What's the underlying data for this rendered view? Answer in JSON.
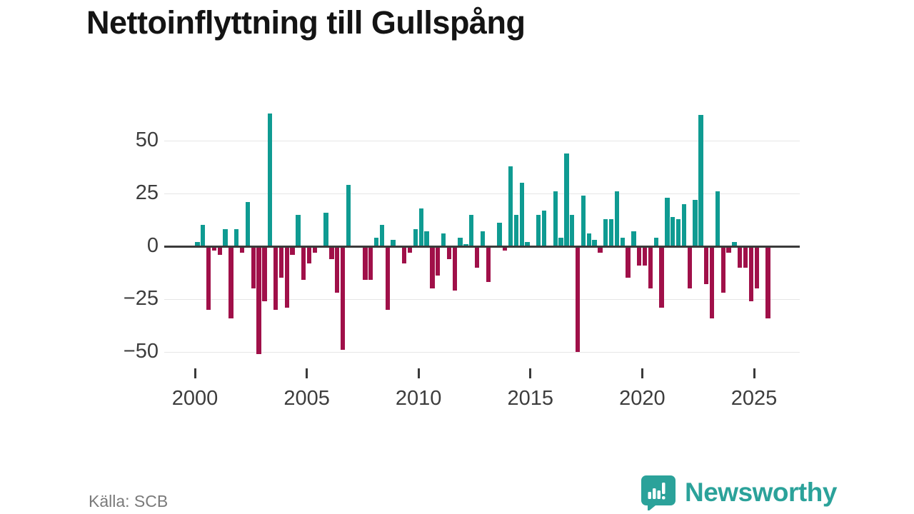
{
  "source": "Källa: SCB",
  "logo": {
    "text": "Newsworthy"
  },
  "colors": {
    "positive_bar": "#0f9b92",
    "negative_bar": "#a01049",
    "zero_line": "#3a3a3a",
    "grid": "#e6e6e6",
    "axis_text": "#3d3d3d",
    "source_text": "#7a7a7a",
    "logo_teal": "#2ba29a"
  },
  "chart_data": {
    "type": "bar",
    "title": "Nettoinflyttning till Gullspång",
    "xlabel": "",
    "ylabel": "",
    "frequency": "quarterly",
    "start_period": "2000 Q1",
    "end_period": "2025 Q3",
    "x_tick_labels": [
      "2000",
      "2005",
      "2010",
      "2015",
      "2020",
      "2025"
    ],
    "y_tick_labels": [
      "50",
      "25",
      "0",
      "−25",
      "−50"
    ],
    "y_ticks": [
      50,
      25,
      0,
      -25,
      -50
    ],
    "ylim": [
      -55,
      66
    ],
    "grid": true,
    "legend": "none",
    "values": [
      2,
      10,
      -30,
      -2,
      -4,
      8,
      -34,
      8,
      -3,
      21,
      -20,
      -51,
      -26,
      63,
      -30,
      -15,
      -29,
      -4,
      15,
      -16,
      -8,
      -3,
      0,
      16,
      -6,
      -22,
      -49,
      29,
      0,
      0,
      -16,
      -16,
      4,
      10,
      -30,
      3,
      0,
      -8,
      -3,
      8,
      18,
      7,
      -20,
      -14,
      6,
      -6,
      -21,
      4,
      1,
      15,
      -10,
      7,
      -17,
      0,
      11,
      -2,
      38,
      15,
      30,
      2,
      0,
      15,
      17,
      0,
      26,
      4,
      44,
      15,
      -50,
      24,
      6,
      3,
      -3,
      13,
      13,
      26,
      4,
      -15,
      7,
      -9,
      -9,
      -20,
      4,
      -29,
      23,
      14,
      13,
      20,
      -20,
      22,
      62,
      -18,
      -34,
      26,
      -22,
      -3,
      2,
      -10,
      -10,
      -26,
      -20,
      0,
      -34
    ]
  }
}
